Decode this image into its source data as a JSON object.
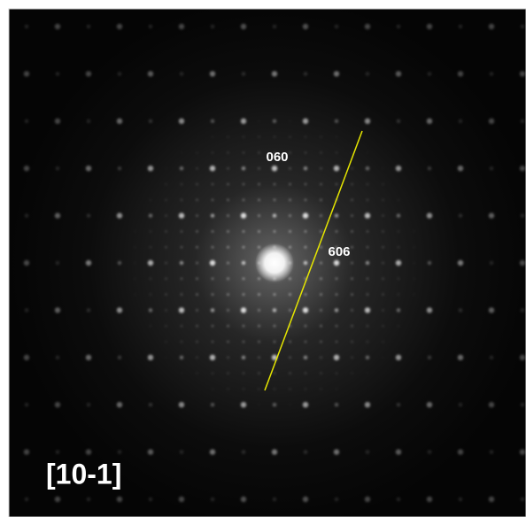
{
  "labels": {
    "upper": "060",
    "right": "606",
    "zone_axis": "[10-1]"
  }
}
